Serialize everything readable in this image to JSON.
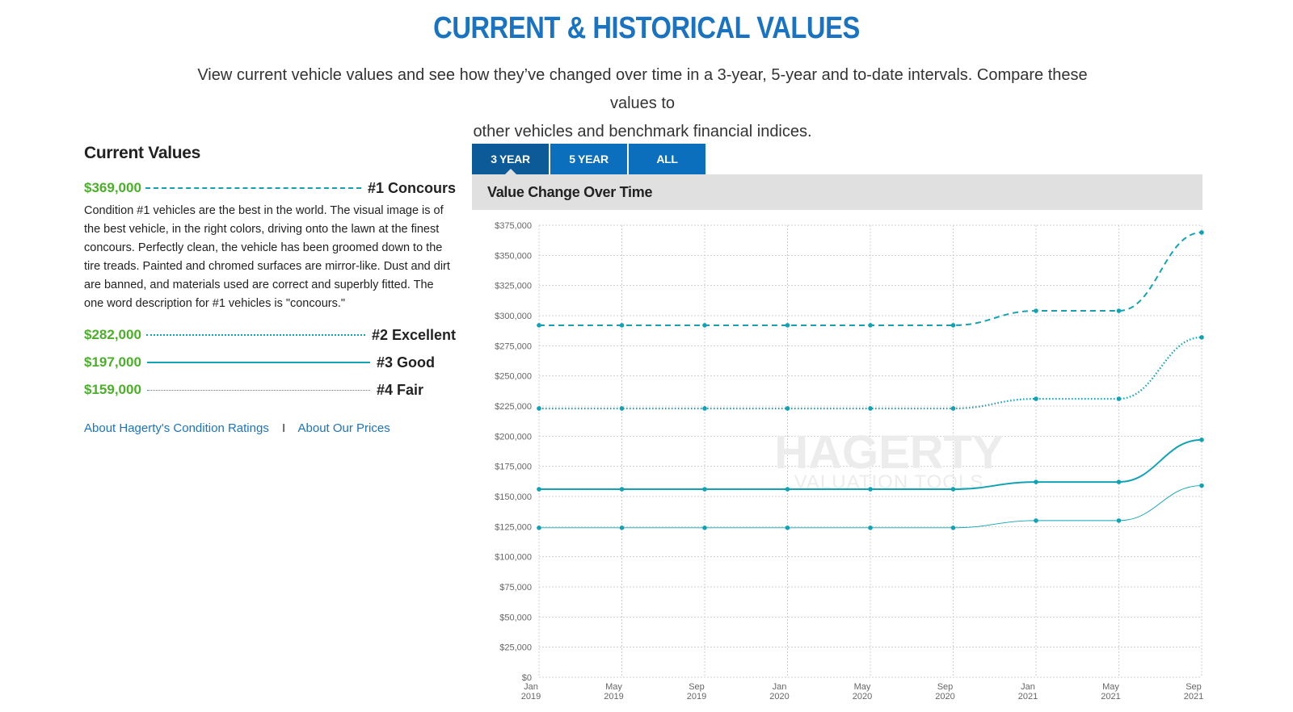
{
  "page": {
    "title": "CURRENT & HISTORICAL VALUES",
    "intro_line1": "View current vehicle values and see how they’ve changed over time in a 3-year, 5-year and to-date intervals. Compare these values to",
    "intro_line2": "other vehicles and benchmark financial indices."
  },
  "current_values": {
    "heading": "Current Values",
    "conditions": [
      {
        "price": "$369,000",
        "name": "#1 Concours",
        "description": "Condition #1 vehicles are the best in the world. The visual image is of the best vehicle, in the right colors, driving onto the lawn at the finest concours. Perfectly clean, the vehicle has been groomed down to the tire treads. Painted and chromed surfaces are mirror-like. Dust and dirt are banned, and materials used are correct and superbly fitted. The one word description for #1 vehicles is \"concours.\""
      },
      {
        "price": "$282,000",
        "name": "#2 Excellent"
      },
      {
        "price": "$197,000",
        "name": "#3 Good"
      },
      {
        "price": "$159,000",
        "name": "#4 Fair"
      }
    ],
    "links": {
      "condition_ratings": "About Hagerty's Condition Ratings",
      "separator": "I",
      "prices": "About Our Prices"
    }
  },
  "tabs": [
    {
      "label": "3 YEAR",
      "active": true
    },
    {
      "label": "5 YEAR",
      "active": false
    },
    {
      "label": "ALL",
      "active": false
    }
  ],
  "chart_header": "Value Change Over Time",
  "watermark": {
    "line1": "HAGERTY",
    "line2": "VALUATION TOOLS"
  },
  "colors": {
    "accent": "#1a73c1",
    "tab": "#0b6fbd",
    "tab_active": "#0d5a99",
    "series": "#11a2b4",
    "price": "#4caf2a"
  },
  "chart_data": {
    "type": "line",
    "title": "Value Change Over Time",
    "x": [
      {
        "month": "Jan",
        "year": "2019"
      },
      {
        "month": "May",
        "year": "2019"
      },
      {
        "month": "Sep",
        "year": "2019"
      },
      {
        "month": "Jan",
        "year": "2020"
      },
      {
        "month": "May",
        "year": "2020"
      },
      {
        "month": "Sep",
        "year": "2020"
      },
      {
        "month": "Jan",
        "year": "2021"
      },
      {
        "month": "May",
        "year": "2021"
      },
      {
        "month": "Sep",
        "year": "2021"
      }
    ],
    "ylim": [
      0,
      375000
    ],
    "yticks": [
      {
        "value": 0,
        "label": "$0"
      },
      {
        "value": 25000,
        "label": "$25,000"
      },
      {
        "value": 50000,
        "label": "$50,000"
      },
      {
        "value": 75000,
        "label": "$75,000"
      },
      {
        "value": 100000,
        "label": "$100,000"
      },
      {
        "value": 125000,
        "label": "$125,000"
      },
      {
        "value": 150000,
        "label": "$150,000"
      },
      {
        "value": 175000,
        "label": "$175,000"
      },
      {
        "value": 200000,
        "label": "$200,000"
      },
      {
        "value": 225000,
        "label": "$225,000"
      },
      {
        "value": 250000,
        "label": "$250,000"
      },
      {
        "value": 275000,
        "label": "$275,000"
      },
      {
        "value": 300000,
        "label": "$300,000"
      },
      {
        "value": 325000,
        "label": "$325,000"
      },
      {
        "value": 350000,
        "label": "$350,000"
      },
      {
        "value": 375000,
        "label": "$375,000"
      }
    ],
    "grid": true,
    "series": [
      {
        "name": "#1 Concours",
        "style": "dashed",
        "values": [
          292000,
          292000,
          292000,
          292000,
          292000,
          292000,
          304000,
          304000,
          369000
        ]
      },
      {
        "name": "#2 Excellent",
        "style": "dotted",
        "values": [
          223000,
          223000,
          223000,
          223000,
          223000,
          223000,
          231000,
          231000,
          282000
        ]
      },
      {
        "name": "#3 Good",
        "style": "solid",
        "values": [
          156000,
          156000,
          156000,
          156000,
          156000,
          156000,
          162000,
          162000,
          197000
        ]
      },
      {
        "name": "#4 Fair",
        "style": "thin",
        "values": [
          124000,
          124000,
          124000,
          124000,
          124000,
          124000,
          130000,
          130000,
          159000
        ]
      }
    ]
  }
}
